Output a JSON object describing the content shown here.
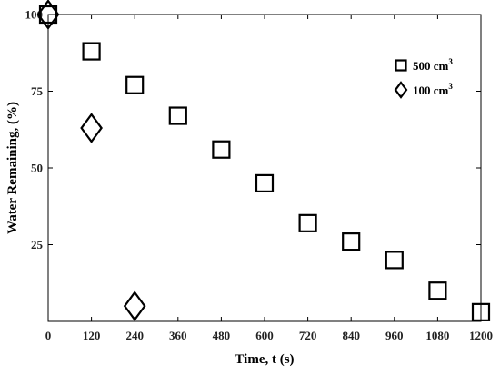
{
  "chart_data": {
    "type": "scatter",
    "title": "",
    "xlabel": "Time, t (s)",
    "ylabel": "Water Remaining, (%)",
    "xlim": [
      0,
      1200
    ],
    "ylim": [
      0,
      100
    ],
    "xticks": [
      "0",
      "120",
      "240",
      "360",
      "480",
      "600",
      "720",
      "840",
      "960",
      "1080",
      "1200"
    ],
    "yticks": [
      "25",
      "50",
      "75",
      "100"
    ],
    "grid": false,
    "legend_position": "top-right",
    "series": [
      {
        "name": "500 cm3",
        "legend_base": "500 cm",
        "legend_sup": "3",
        "marker": "square",
        "x": [
          0,
          120,
          240,
          360,
          480,
          600,
          720,
          840,
          960,
          1080,
          1200
        ],
        "y": [
          100,
          88,
          77,
          67,
          56,
          45,
          32,
          26,
          20,
          10,
          3
        ]
      },
      {
        "name": "100 cm3",
        "legend_base": "100 cm",
        "legend_sup": "3",
        "marker": "diamond",
        "x": [
          0,
          120,
          240
        ],
        "y": [
          100,
          63,
          5
        ]
      }
    ]
  }
}
